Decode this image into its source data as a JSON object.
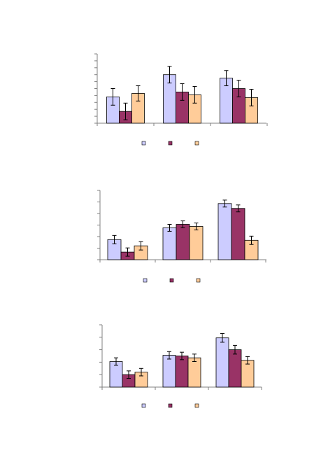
{
  "colors": {
    "series_colors": [
      "#ccccff",
      "#993366",
      "#ffcc99"
    ],
    "axis": "#808080",
    "outline": "#000000"
  },
  "chart_data": [
    {
      "type": "bar",
      "categories": [
        "",
        "",
        ""
      ],
      "series": [
        {
          "values": [
            38,
            70,
            65
          ],
          "errors": [
            12,
            12,
            11
          ]
        },
        {
          "values": [
            17,
            45,
            50
          ],
          "errors": [
            12,
            12,
            12
          ]
        },
        {
          "values": [
            43,
            41,
            37
          ],
          "errors": [
            11,
            12,
            12
          ]
        }
      ],
      "ylim": [
        0,
        100
      ],
      "yticks": 10,
      "legend": "bottom-center",
      "grid": false
    },
    {
      "type": "bar",
      "categories": [
        "",
        "",
        ""
      ],
      "series": [
        {
          "values": [
            29,
            46,
            81
          ],
          "errors": [
            6,
            5,
            5
          ]
        },
        {
          "values": [
            11,
            51,
            74
          ],
          "errors": [
            6,
            5,
            5
          ]
        },
        {
          "values": [
            20,
            48,
            28
          ],
          "errors": [
            6,
            5,
            6
          ]
        }
      ],
      "ylim": [
        0,
        100
      ],
      "yticks": 6,
      "legend": "bottom-center",
      "grid": false
    },
    {
      "type": "bar",
      "categories": [
        "",
        "",
        ""
      ],
      "series": [
        {
          "values": [
            41,
            51,
            79
          ],
          "errors": [
            6,
            6,
            7
          ]
        },
        {
          "values": [
            20,
            50,
            60
          ],
          "errors": [
            6,
            6,
            7
          ]
        },
        {
          "values": [
            24,
            47,
            43
          ],
          "errors": [
            6,
            6,
            6
          ]
        }
      ],
      "ylim": [
        0,
        100
      ],
      "yticks": 5,
      "legend": "bottom-center",
      "grid": false
    }
  ]
}
